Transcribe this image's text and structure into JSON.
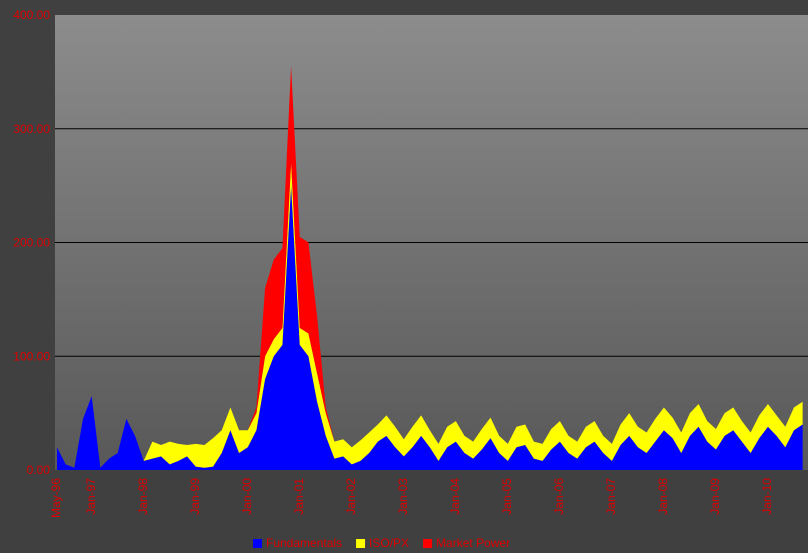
{
  "chart_data": {
    "type": "stacked_area",
    "categories": [
      "May-96",
      null,
      null,
      null,
      "Jan-97",
      null,
      null,
      null,
      null,
      null,
      "Jan-98",
      null,
      null,
      null,
      null,
      null,
      "Jan-99",
      null,
      null,
      null,
      null,
      null,
      "Jan-00",
      null,
      null,
      null,
      null,
      null,
      "Jan-01",
      null,
      null,
      null,
      null,
      null,
      "Jan-02",
      null,
      null,
      null,
      null,
      null,
      "Jan-03",
      null,
      null,
      null,
      null,
      null,
      "Jan-04",
      null,
      null,
      null,
      null,
      null,
      "Jan-05",
      null,
      null,
      null,
      null,
      null,
      "Jan-06",
      null,
      null,
      null,
      null,
      null,
      "Jan-07",
      null,
      null,
      null,
      null,
      null,
      "Jan-08",
      null,
      null,
      null,
      null,
      null,
      "Jan-09",
      null,
      null,
      null,
      null,
      null,
      "Jan-10",
      null,
      null,
      null,
      null
    ],
    "series": [
      {
        "name": "Fundamentals",
        "color": "#0000ff",
        "values": [
          20,
          5,
          2,
          45,
          65,
          2,
          10,
          15,
          45,
          30,
          8,
          10,
          12,
          5,
          8,
          12,
          3,
          2,
          3,
          15,
          35,
          15,
          20,
          35,
          80,
          100,
          110,
          250,
          110,
          100,
          60,
          30,
          10,
          12,
          5,
          8,
          15,
          25,
          30,
          20,
          12,
          20,
          30,
          20,
          8,
          20,
          25,
          15,
          10,
          18,
          28,
          15,
          8,
          20,
          22,
          10,
          8,
          18,
          25,
          15,
          10,
          20,
          25,
          15,
          8,
          22,
          30,
          20,
          15,
          25,
          35,
          28,
          15,
          30,
          38,
          25,
          18,
          30,
          35,
          25,
          15,
          28,
          38,
          30,
          20,
          35,
          40
        ]
      },
      {
        "name": "ISO/PX",
        "color": "#ffff00",
        "values": [
          0,
          0,
          0,
          0,
          0,
          0,
          0,
          0,
          0,
          0,
          0,
          15,
          10,
          20,
          15,
          10,
          20,
          20,
          25,
          20,
          20,
          20,
          15,
          15,
          20,
          15,
          15,
          20,
          15,
          20,
          25,
          20,
          15,
          15,
          15,
          18,
          18,
          15,
          18,
          18,
          15,
          18,
          18,
          15,
          15,
          18,
          18,
          15,
          15,
          18,
          18,
          15,
          15,
          18,
          18,
          15,
          15,
          18,
          18,
          15,
          15,
          18,
          18,
          15,
          15,
          18,
          20,
          18,
          18,
          20,
          20,
          18,
          18,
          20,
          20,
          18,
          18,
          20,
          20,
          18,
          18,
          20,
          20,
          18,
          18,
          20,
          20
        ]
      },
      {
        "name": "Market Power",
        "color": "#ff0000",
        "values": [
          0,
          0,
          0,
          0,
          0,
          0,
          0,
          0,
          0,
          0,
          0,
          0,
          0,
          0,
          0,
          0,
          0,
          0,
          0,
          0,
          0,
          0,
          0,
          5,
          60,
          70,
          70,
          85,
          80,
          80,
          50,
          5,
          0,
          0,
          0,
          0,
          0,
          0,
          0,
          0,
          0,
          0,
          0,
          0,
          0,
          0,
          0,
          0,
          0,
          0,
          0,
          0,
          0,
          0,
          0,
          0,
          0,
          0,
          0,
          0,
          0,
          0,
          0,
          0,
          0,
          0,
          0,
          0,
          0,
          0,
          0,
          0,
          0,
          0,
          0,
          0,
          0,
          0,
          0,
          0,
          0,
          0,
          0,
          0,
          0,
          0,
          0
        ]
      }
    ],
    "ylim": [
      0,
      400
    ],
    "yticks": [
      {
        "value": 0,
        "label": "0.00"
      },
      {
        "value": 100,
        "label": "100.00"
      },
      {
        "value": 200,
        "label": "200.00"
      },
      {
        "value": 300,
        "label": "300.00"
      },
      {
        "value": 400,
        "label": "400.00"
      }
    ],
    "grid": true,
    "legend": "bottom"
  }
}
